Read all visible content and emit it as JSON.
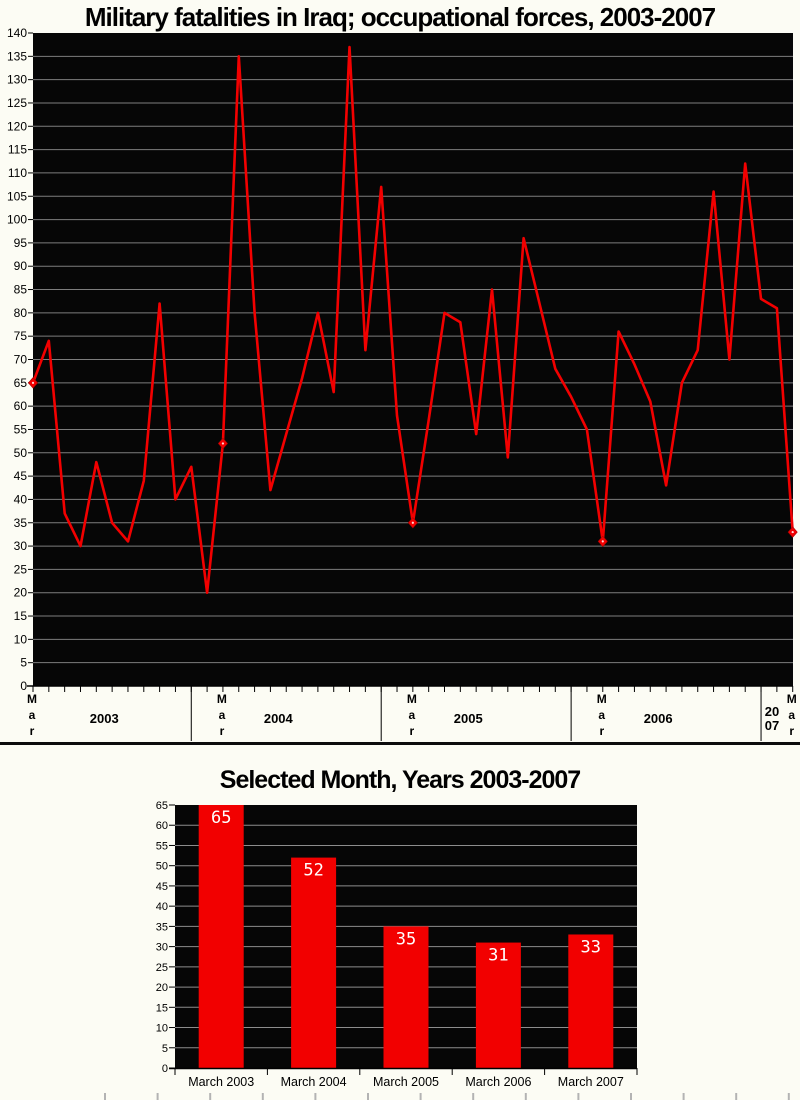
{
  "page": {
    "background_color": "#fcfcf4",
    "divider_color": "#0c0c0c"
  },
  "chart_data": [
    {
      "type": "line",
      "title": "Military fatalities in Iraq; occupational forces, 2003-2007",
      "xlabel": "",
      "ylabel": "",
      "ylim": [
        0,
        140
      ],
      "ytick_step": 5,
      "grid": true,
      "legend": "none",
      "x": [
        "Mar 2003",
        "Apr 2003",
        "May 2003",
        "Jun 2003",
        "Jul 2003",
        "Aug 2003",
        "Sep 2003",
        "Oct 2003",
        "Nov 2003",
        "Dec 2003",
        "Jan 2004",
        "Feb 2004",
        "Mar 2004",
        "Apr 2004",
        "May 2004",
        "Jun 2004",
        "Jul 2004",
        "Aug 2004",
        "Sep 2004",
        "Oct 2004",
        "Nov 2004",
        "Dec 2004",
        "Jan 2005",
        "Feb 2005",
        "Mar 2005",
        "Apr 2005",
        "May 2005",
        "Jun 2005",
        "Jul 2005",
        "Aug 2005",
        "Sep 2005",
        "Oct 2005",
        "Nov 2005",
        "Dec 2005",
        "Jan 2006",
        "Feb 2006",
        "Mar 2006",
        "Apr 2006",
        "May 2006",
        "Jun 2006",
        "Jul 2006",
        "Aug 2006",
        "Sep 2006",
        "Oct 2006",
        "Nov 2006",
        "Dec 2006",
        "Jan 2007",
        "Feb 2007",
        "Mar 2007"
      ],
      "values": [
        65,
        74,
        37,
        30,
        48,
        35,
        31,
        44,
        82,
        40,
        47,
        20,
        52,
        135,
        80,
        42,
        54,
        66,
        80,
        63,
        137,
        72,
        107,
        58,
        35,
        57,
        80,
        78,
        54,
        85,
        49,
        96,
        82,
        68,
        62,
        55,
        31,
        76,
        69,
        61,
        43,
        65,
        72,
        106,
        70,
        112,
        83,
        81,
        33
      ],
      "highlight_marker_indices": [
        0,
        12,
        24,
        36,
        48
      ],
      "x_axis": {
        "march_tick_label": "Mar",
        "year_labels": [
          "2003",
          "2004",
          "2005",
          "2006",
          "2007"
        ]
      },
      "colors": {
        "line": "#f20000",
        "plot_background": "#060606",
        "gridline": "#7d7d7d",
        "axis": "#000000",
        "marker": "#f20000",
        "marker_dot": "#ffd9d9"
      }
    },
    {
      "type": "bar",
      "title": "Selected Month, Years 2003-2007",
      "xlabel": "",
      "ylabel": "",
      "ylim": [
        0,
        65
      ],
      "ytick_step": 5,
      "grid": true,
      "legend": "none",
      "categories": [
        "March 2003",
        "March 2004",
        "March 2005",
        "March 2006",
        "March 2007"
      ],
      "values": [
        65,
        52,
        35,
        31,
        33
      ],
      "bar_value_labels": [
        "65",
        "52",
        "35",
        "31",
        "33"
      ],
      "colors": {
        "bar": "#f20000",
        "plot_background": "#060606",
        "gridline": "#8c8c8c",
        "axis": "#000000",
        "value_label_text": "#ffffff",
        "bottom_tick": "#b3b3b3"
      }
    }
  ]
}
